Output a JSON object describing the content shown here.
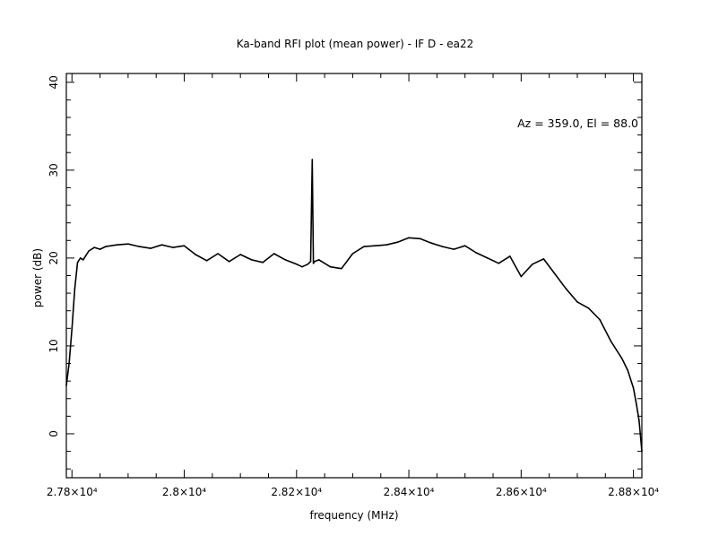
{
  "chart_data": {
    "type": "line",
    "title": "Ka-band RFI plot (mean power) - IF D - ea22",
    "xlabel": "frequency (MHz)",
    "ylabel": "power (dB)",
    "annotation": "Az = 359.0, El = 88.0",
    "xlim": [
      27790,
      28815
    ],
    "ylim": [
      -5,
      41
    ],
    "x_ticks": [
      {
        "value": 27800,
        "label": "2.78×10⁴"
      },
      {
        "value": 28000,
        "label": "2.8×10⁴"
      },
      {
        "value": 28200,
        "label": "2.82×10⁴"
      },
      {
        "value": 28400,
        "label": "2.84×10⁴"
      },
      {
        "value": 28600,
        "label": "2.86×10⁴"
      },
      {
        "value": 28800,
        "label": "2.88×10⁴"
      }
    ],
    "y_ticks": [
      {
        "value": 0,
        "label": "0"
      },
      {
        "value": 10,
        "label": "10"
      },
      {
        "value": 20,
        "label": "20"
      },
      {
        "value": 30,
        "label": "30"
      },
      {
        "value": 40,
        "label": "40"
      }
    ],
    "grid": false,
    "series": [
      {
        "color": "#000000",
        "x": [
          27790,
          27795,
          27800,
          27805,
          27810,
          27815,
          27820,
          27825,
          27830,
          27840,
          27850,
          27860,
          27880,
          27900,
          27920,
          27940,
          27960,
          27980,
          28000,
          28020,
          28040,
          28060,
          28080,
          28100,
          28120,
          28140,
          28160,
          28180,
          28200,
          28210,
          28220,
          28225,
          28228,
          28230,
          28232,
          28240,
          28260,
          28280,
          28300,
          28320,
          28340,
          28360,
          28380,
          28400,
          28420,
          28440,
          28460,
          28480,
          28500,
          28520,
          28540,
          28560,
          28580,
          28600,
          28620,
          28640,
          28660,
          28680,
          28700,
          28720,
          28740,
          28760,
          28780,
          28790,
          28800,
          28805,
          28810,
          28815
        ],
        "y": [
          5.5,
          8.0,
          12.0,
          16.5,
          19.5,
          20.0,
          19.8,
          20.3,
          20.8,
          21.2,
          21.0,
          21.3,
          21.5,
          21.6,
          21.3,
          21.1,
          21.5,
          21.2,
          21.4,
          20.4,
          19.7,
          20.5,
          19.6,
          20.4,
          19.8,
          19.5,
          20.5,
          19.8,
          19.3,
          19.0,
          19.3,
          19.6,
          31.2,
          19.4,
          19.6,
          19.8,
          19.0,
          18.8,
          20.5,
          21.3,
          21.4,
          21.5,
          21.8,
          22.3,
          22.2,
          21.7,
          21.3,
          21.0,
          21.4,
          20.6,
          20.0,
          19.4,
          20.2,
          17.9,
          19.3,
          19.9,
          18.2,
          16.5,
          15.0,
          14.3,
          13.0,
          10.5,
          8.5,
          7.2,
          5.2,
          3.5,
          1.5,
          -2.0
        ]
      }
    ]
  }
}
